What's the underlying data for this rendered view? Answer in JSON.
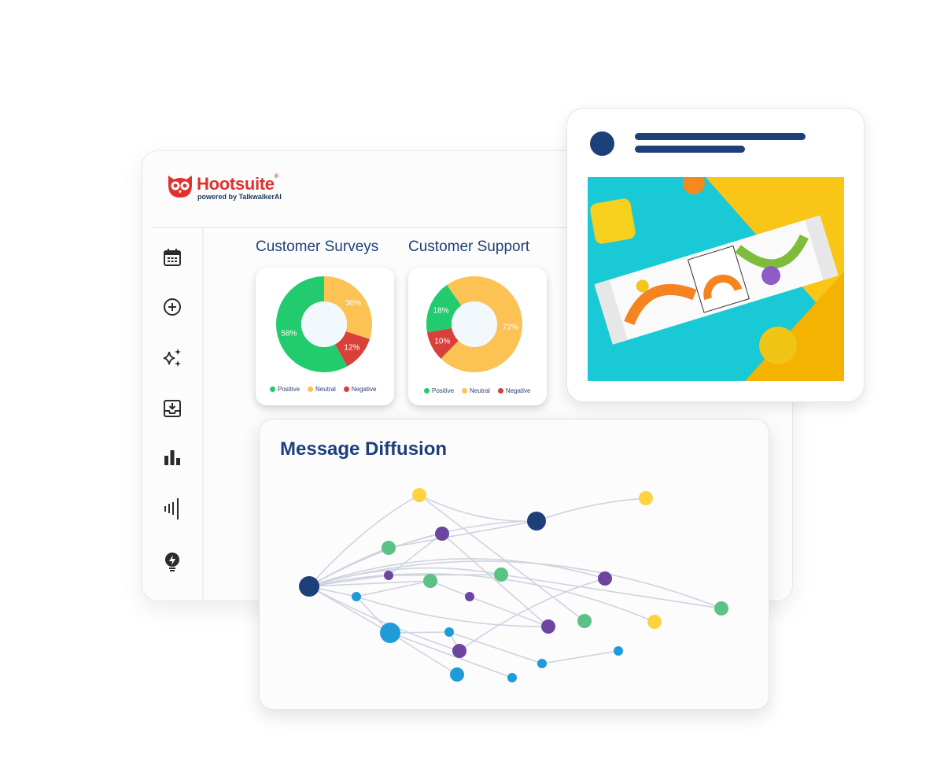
{
  "brand": {
    "name": "Hootsuite",
    "registered": "®",
    "tagline": "powered by TalkwalkerAI",
    "color": "#e0312f"
  },
  "sidebar": {
    "items": [
      {
        "icon": "calendar-icon",
        "label": "Planner"
      },
      {
        "icon": "plus-circle-icon",
        "label": "Create"
      },
      {
        "icon": "sparkles-icon",
        "label": "AI"
      },
      {
        "icon": "inbox-icon",
        "label": "Inbox"
      },
      {
        "icon": "bar-chart-icon",
        "label": "Analytics"
      },
      {
        "icon": "listening-icon",
        "label": "Listening"
      },
      {
        "icon": "lightbulb-icon",
        "label": "Insights"
      }
    ]
  },
  "colors": {
    "positive": "#22cc6e",
    "neutral": "#fdc254",
    "negative": "#d9403a",
    "navy": "#1d3f7a"
  },
  "chart_data": [
    {
      "type": "pie",
      "title": "Customer Surveys",
      "categories": [
        "Positive",
        "Neutral",
        "Negative"
      ],
      "values": [
        58,
        30,
        12
      ],
      "labels": [
        "58%",
        "30%",
        "12%"
      ],
      "legend": "bottom",
      "donut": true
    },
    {
      "type": "pie",
      "title": "Customer Support",
      "categories": [
        "Positive",
        "Neutral",
        "Negative"
      ],
      "values": [
        18,
        72,
        10
      ],
      "labels": [
        "18%",
        "72%",
        "10%"
      ],
      "legend": "bottom",
      "donut": true
    }
  ],
  "diffusion": {
    "title": "Message Diffusion",
    "node_colors": {
      "navy": "#1d3f7a",
      "yellow": "#fdd33f",
      "purple": "#6b45a0",
      "green": "#5cc185",
      "blue": "#1e9bd8"
    }
  }
}
